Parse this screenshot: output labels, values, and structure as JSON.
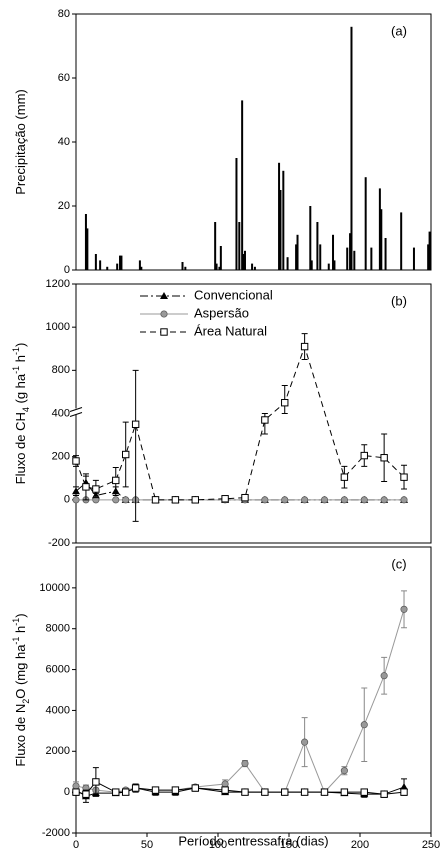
{
  "chart_data": [
    {
      "type": "bar",
      "annotation": "(a)",
      "ylabel": [
        {
          "text": "Precipitação (mm)"
        }
      ],
      "x": [
        7,
        8,
        14,
        17,
        22,
        29,
        31,
        32,
        45,
        46,
        75,
        77,
        98,
        99,
        101,
        102,
        113,
        115,
        117,
        118,
        119,
        124,
        126,
        143,
        144,
        146,
        149,
        155,
        156,
        165,
        166,
        170,
        172,
        178,
        181,
        182,
        191,
        193,
        194,
        196,
        204,
        208,
        214,
        215,
        218,
        229,
        238,
        248,
        249
      ],
      "values": [
        17.5,
        13,
        5,
        3,
        1,
        2,
        4.5,
        4.5,
        3,
        1,
        2.5,
        1,
        15,
        2,
        1,
        7.5,
        35,
        15,
        53,
        5,
        6,
        2,
        1,
        33.5,
        25,
        31,
        4,
        8,
        11,
        20,
        3,
        15,
        8,
        2,
        11,
        3,
        7,
        11.5,
        76,
        6,
        29,
        7,
        25.5,
        19,
        10,
        18,
        7,
        8,
        12
      ],
      "color": "#000000",
      "xlim": [
        0,
        250
      ],
      "ylim": [
        0,
        80
      ],
      "yticks": [
        0,
        20,
        40,
        60,
        80
      ]
    },
    {
      "type": "line",
      "annotation": "(b)",
      "ylabel": [
        {
          "text": "Fluxo de CH"
        },
        {
          "text": "4",
          "script": "sub"
        },
        {
          "text": " (g ha"
        },
        {
          "text": "-1",
          "script": "sup"
        },
        {
          "text": " h"
        },
        {
          "text": "-1",
          "script": "sup"
        },
        {
          "text": ")"
        }
      ],
      "x": [
        0,
        7,
        14,
        28,
        35,
        42,
        56,
        70,
        84,
        105,
        119,
        133,
        147,
        161,
        175,
        189,
        203,
        217,
        231
      ],
      "series": [
        {
          "name": "Convencional",
          "color": "#000000",
          "marker": "triangle",
          "linestyle": "dashdot",
          "values": [
            40,
            80,
            20,
            40,
            0,
            0,
            0,
            0,
            0,
            0,
            0,
            0,
            0,
            0,
            0,
            0,
            0,
            0,
            0
          ],
          "errors": [
            20,
            30,
            10,
            20,
            5,
            5,
            5,
            5,
            5,
            5,
            5,
            5,
            5,
            5,
            5,
            5,
            5,
            5,
            5
          ]
        },
        {
          "name": "Aspersão",
          "color": "#999999",
          "marker": "circle",
          "linestyle": "solid",
          "values": [
            0,
            0,
            0,
            0,
            0,
            0,
            0,
            0,
            0,
            0,
            0,
            0,
            0,
            0,
            0,
            0,
            0,
            0,
            0
          ],
          "errors": [
            5,
            5,
            5,
            5,
            5,
            5,
            5,
            5,
            5,
            5,
            5,
            5,
            5,
            5,
            5,
            5,
            5,
            5,
            5
          ]
        },
        {
          "name": "Área Natural",
          "color": "#000000",
          "marker": "square",
          "linestyle": "dashed",
          "x": [
            0,
            7,
            14,
            28,
            35,
            42,
            56,
            70,
            84,
            105,
            119,
            133,
            147,
            161,
            189,
            203,
            217,
            231
          ],
          "values": [
            180,
            60,
            50,
            90,
            210,
            350,
            0,
            0,
            0,
            5,
            10,
            370,
            650,
            910,
            105,
            205,
            195,
            105
          ],
          "errors": [
            25,
            60,
            40,
            60,
            150,
            450,
            5,
            5,
            5,
            5,
            10,
            65,
            80,
            60,
            50,
            50,
            110,
            55
          ]
        }
      ],
      "legend": "top",
      "xlim": [
        0,
        250
      ],
      "ylim": [
        -200,
        1200
      ],
      "ybreak": [
        400,
        600
      ],
      "yticks": [
        -200,
        0,
        200,
        400,
        800,
        1000,
        1200
      ]
    },
    {
      "type": "line",
      "annotation": "(c)",
      "ylabel": [
        {
          "text": "Fluxo de N"
        },
        {
          "text": "2",
          "script": "sub"
        },
        {
          "text": "O (mg ha"
        },
        {
          "text": "-1",
          "script": "sup"
        },
        {
          "text": " h"
        },
        {
          "text": "-1",
          "script": "sup"
        },
        {
          "text": ")"
        }
      ],
      "xlabel": "Período entressafra (dias)",
      "x": [
        0,
        7,
        14,
        28,
        35,
        42,
        56,
        70,
        84,
        105,
        119,
        133,
        147,
        161,
        175,
        189,
        203,
        217,
        231
      ],
      "series": [
        {
          "name": "Convencional",
          "color": "#000000",
          "marker": "triangle",
          "linestyle": "solid",
          "values": [
            100,
            -200,
            -50,
            -50,
            0,
            200,
            0,
            0,
            200,
            0,
            0,
            0,
            0,
            0,
            0,
            -50,
            -100,
            -100,
            250
          ],
          "errors": [
            150,
            300,
            150,
            100,
            100,
            200,
            150,
            150,
            150,
            50,
            50,
            50,
            50,
            50,
            50,
            50,
            150,
            150,
            400
          ]
        },
        {
          "name": "Aspersão",
          "color": "#999999",
          "marker": "circle",
          "linestyle": "solid",
          "values": [
            300,
            200,
            100,
            0,
            100,
            200,
            100,
            100,
            250,
            400,
            1400,
            0,
            0,
            2450,
            0,
            1050,
            3300,
            5700,
            8950
          ],
          "errors": [
            200,
            150,
            100,
            100,
            100,
            150,
            100,
            100,
            100,
            200,
            150,
            50,
            50,
            1200,
            50,
            200,
            1800,
            900,
            900
          ]
        },
        {
          "name": "Área Natural",
          "color": "#000000",
          "marker": "square",
          "linestyle": "solid",
          "values": [
            0,
            -100,
            500,
            0,
            0,
            200,
            100,
            100,
            200,
            100,
            0,
            0,
            0,
            0,
            0,
            0,
            0,
            -100,
            0
          ],
          "errors": [
            150,
            200,
            700,
            100,
            100,
            100,
            100,
            100,
            100,
            50,
            50,
            50,
            50,
            50,
            50,
            50,
            50,
            50,
            50
          ]
        }
      ],
      "xlim": [
        0,
        250
      ],
      "xticks": [
        0,
        50,
        100,
        150,
        200,
        250
      ],
      "ylim": [
        -2000,
        12000
      ],
      "yticks": [
        -2000,
        0,
        2000,
        4000,
        6000,
        8000,
        10000
      ]
    }
  ]
}
